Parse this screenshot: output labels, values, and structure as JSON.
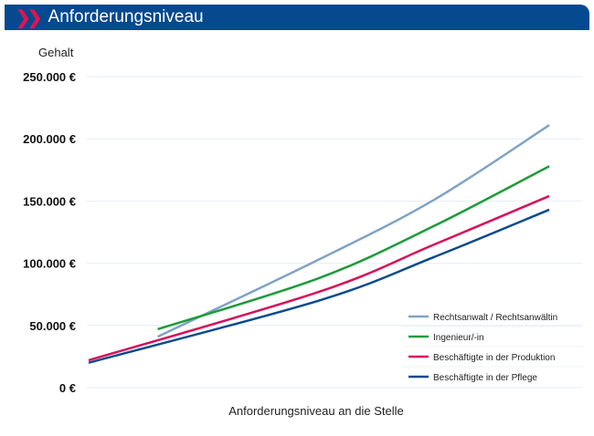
{
  "header": {
    "title": "Anforderungsniveau",
    "icon": "double-chevron-right-icon"
  },
  "chart_data": {
    "type": "line",
    "title": "Anforderungsniveau",
    "ylabel": "Gehalt",
    "xlabel": "Anforderungsniveau an die Stelle",
    "ylim": [
      0,
      250000
    ],
    "xlim": [
      0,
      10
    ],
    "yticks": [
      0,
      50000,
      100000,
      150000,
      200000,
      250000
    ],
    "ytick_labels": [
      "0 €",
      "50.000 €",
      "100.000 €",
      "150.000 €",
      "200.000 €",
      "250.000 €"
    ],
    "grid": true,
    "legend": "bottom-right",
    "series": [
      {
        "name": "Rechtsanwalt / Rechtsanwältin",
        "color": "#7fa3c6",
        "x": [
          1.5,
          5,
          7.5,
          10
        ],
        "values": [
          41000,
          103000,
          151000,
          211000
        ]
      },
      {
        "name": "Ingenieur/-in",
        "color": "#1e9b3a",
        "x": [
          1.5,
          5,
          7.5,
          10
        ],
        "values": [
          47000,
          88000,
          130000,
          178000
        ]
      },
      {
        "name": " Beschäftigte in der Produktion",
        "color": "#d8105a",
        "x": [
          0,
          5,
          7.5,
          10
        ],
        "values": [
          22000,
          77000,
          115000,
          154000
        ]
      },
      {
        "name": "Beschäftigte in der Pflege",
        "color": "#0a4a8f",
        "x": [
          0,
          5,
          7.5,
          10
        ],
        "values": [
          20000,
          70000,
          105000,
          143000
        ]
      }
    ]
  }
}
